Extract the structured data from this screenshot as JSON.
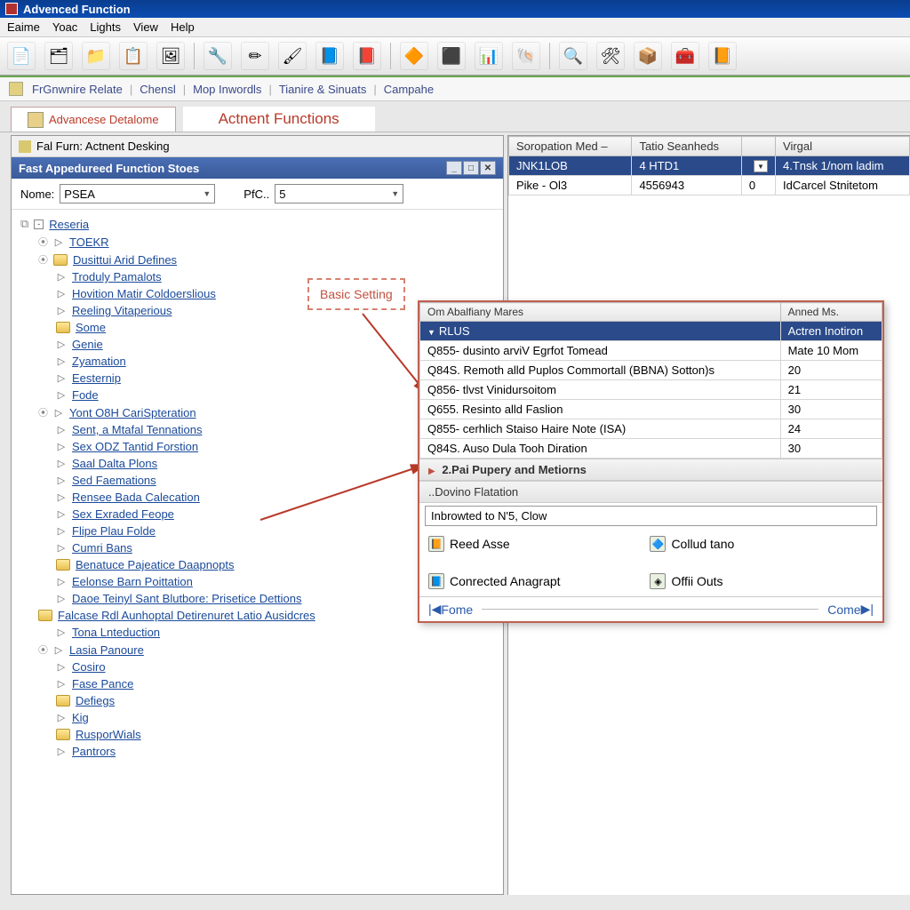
{
  "window": {
    "title": "Advenced Function"
  },
  "menu": [
    "Eaime",
    "Yoac",
    "Lights",
    "View",
    "Help"
  ],
  "toolbar_icons": [
    "📄",
    "🗂",
    "📁",
    "📋",
    "🖼",
    "|",
    "🔧",
    "✏",
    "🖌",
    "📘",
    "📕",
    "|",
    "🔶",
    "⬛",
    "📊",
    "🐚",
    "|",
    "🔍",
    "🛠",
    "📦",
    "🧰",
    "📙"
  ],
  "linkbar": [
    "FrGnwnire Relate",
    "Chensl",
    "Mop Inwordls",
    "Tianire & Sinuats",
    "Campahe"
  ],
  "tabs": {
    "active": "Advancese Detalome",
    "secondary": "Actnent Functions"
  },
  "pane_title": "Fal Furn: Actnent Desking",
  "dialog_title": "Fast Appedureed Function Stoes",
  "filter": {
    "name_label": "Nome:",
    "name_value": "PSEA",
    "pfc_label": "PfC..",
    "pfc_value": "5"
  },
  "tree": [
    {
      "ind": 0,
      "exp": "-",
      "fold": false,
      "arrow": false,
      "text": "Reseria",
      "link": true,
      "pre": "doc"
    },
    {
      "ind": 20,
      "exp": "o",
      "fold": false,
      "arrow": true,
      "text": "TOEKR",
      "link": true
    },
    {
      "ind": 20,
      "exp": "o",
      "fold": true,
      "arrow": false,
      "text": "Dusittui Arid Defines",
      "link": true
    },
    {
      "ind": 40,
      "exp": "",
      "fold": false,
      "arrow": true,
      "text": "Troduly Pamalots",
      "link": true
    },
    {
      "ind": 40,
      "exp": "",
      "fold": false,
      "arrow": true,
      "text": "Hovition Matir Coldoerslious",
      "link": true
    },
    {
      "ind": 40,
      "exp": "",
      "fold": false,
      "arrow": true,
      "text": "Reeling Vitaperious",
      "link": true
    },
    {
      "ind": 40,
      "exp": "",
      "fold": true,
      "arrow": false,
      "text": "Some",
      "link": true
    },
    {
      "ind": 40,
      "exp": "",
      "fold": false,
      "arrow": true,
      "text": "Genie",
      "link": true
    },
    {
      "ind": 40,
      "exp": "",
      "fold": false,
      "arrow": true,
      "text": "Zyamation",
      "link": true
    },
    {
      "ind": 40,
      "exp": "",
      "fold": false,
      "arrow": true,
      "text": "Eesternip",
      "link": true
    },
    {
      "ind": 40,
      "exp": "",
      "fold": false,
      "arrow": true,
      "text": "Fode",
      "link": true
    },
    {
      "ind": 20,
      "exp": "o",
      "fold": false,
      "arrow": true,
      "text": "Yont O8H CariSpteration",
      "link": true
    },
    {
      "ind": 40,
      "exp": "",
      "fold": false,
      "arrow": true,
      "text": "Sent, a Mtafal Tennations",
      "link": true
    },
    {
      "ind": 40,
      "exp": "",
      "fold": false,
      "arrow": true,
      "text": "Sex ODZ Tantid Forstion",
      "link": true
    },
    {
      "ind": 40,
      "exp": "",
      "fold": false,
      "arrow": true,
      "text": "Saal Dalta Plons",
      "link": true
    },
    {
      "ind": 40,
      "exp": "",
      "fold": false,
      "arrow": true,
      "text": "Sed Faemations",
      "link": true
    },
    {
      "ind": 40,
      "exp": "",
      "fold": false,
      "arrow": true,
      "text": "Rensee Bada Calecation",
      "link": true
    },
    {
      "ind": 40,
      "exp": "",
      "fold": false,
      "arrow": true,
      "text": "Sex Exraded Feope",
      "link": true
    },
    {
      "ind": 40,
      "exp": "",
      "fold": false,
      "arrow": true,
      "text": "Flipe Plau Folde",
      "link": true
    },
    {
      "ind": 40,
      "exp": "",
      "fold": false,
      "arrow": true,
      "text": "Cumri Bans",
      "link": true
    },
    {
      "ind": 40,
      "exp": "",
      "fold": true,
      "arrow": false,
      "text": "Benatuce Pajeatice Daapnopts",
      "link": true
    },
    {
      "ind": 40,
      "exp": "",
      "fold": false,
      "arrow": true,
      "text": "Eelonse Barn Poittation",
      "link": true
    },
    {
      "ind": 40,
      "exp": "",
      "fold": false,
      "arrow": true,
      "text": "Daoe Teinyl Sant Blutbore: Prisetice Dettions",
      "link": true
    },
    {
      "ind": 20,
      "exp": "",
      "fold": true,
      "arrow": false,
      "text": "Falcase Rdl Aunhoptal Detirenuret Latio Ausidcres",
      "link": true,
      "pre": "fold2"
    },
    {
      "ind": 40,
      "exp": "",
      "fold": false,
      "arrow": true,
      "text": "Tona Lnteduction",
      "link": true
    },
    {
      "ind": 20,
      "exp": "o",
      "fold": false,
      "arrow": true,
      "text": "Lasia Panoure",
      "link": true
    },
    {
      "ind": 40,
      "exp": "",
      "fold": false,
      "arrow": true,
      "text": "Cosiro",
      "link": true
    },
    {
      "ind": 40,
      "exp": "",
      "fold": false,
      "arrow": true,
      "text": "Fase Pance",
      "link": true
    },
    {
      "ind": 40,
      "exp": "",
      "fold": true,
      "arrow": false,
      "text": "Defiegs",
      "link": true
    },
    {
      "ind": 40,
      "exp": "",
      "fold": false,
      "arrow": true,
      "text": "Kig",
      "link": true
    },
    {
      "ind": 40,
      "exp": "",
      "fold": true,
      "arrow": false,
      "text": "RusporWials",
      "link": true
    },
    {
      "ind": 40,
      "exp": "",
      "fold": false,
      "arrow": true,
      "text": "Pantrors",
      "link": true
    }
  ],
  "right_table": {
    "headers": [
      "Soropation Med –",
      "Tatio Seanheds",
      "",
      "Virgal"
    ],
    "rows": [
      {
        "sel": true,
        "c": [
          "JNK1LOB",
          "4 HTD1",
          "▾",
          "4.Tnsk 1/nom ladim"
        ]
      },
      {
        "sel": false,
        "c": [
          "Pike - Ol3",
          "4556943",
          "0",
          "IdCarcel Stnitetom"
        ]
      }
    ]
  },
  "callout": "Basic Setting",
  "popup": {
    "headers": [
      "Om Abalfiany Mares",
      "Anned Ms."
    ],
    "rows": [
      {
        "sel": true,
        "c": [
          "RLUS",
          "Actren Inotiron"
        ]
      },
      {
        "sel": false,
        "c": [
          "Q855- dusinto arviV Egrfot Tomead",
          "Mate 10 Mom"
        ]
      },
      {
        "sel": false,
        "c": [
          "Q84S. Remoth alld Puplos Commortall (BBNA) Sotton)s",
          "20"
        ]
      },
      {
        "sel": false,
        "c": [
          "Q856- tlvst Vinidursoitom",
          "21"
        ]
      },
      {
        "sel": false,
        "c": [
          "Q655. Resinto alld Faslion",
          "30"
        ]
      },
      {
        "sel": false,
        "c": [
          "Q855- cerhlich Staiso Haire Note (ISA)",
          "24"
        ]
      },
      {
        "sel": false,
        "c": [
          "Q84S. Auso Dula Tooh Diration",
          "30"
        ]
      }
    ],
    "sub1": "2.Pai Pupery and Metiorns",
    "sub2": "..Dovino Flatation",
    "input": "Inbrowted to N'5, Clow",
    "actions": [
      {
        "icon": "📙",
        "label": "Reed Asse"
      },
      {
        "icon": "🔷",
        "label": "Collud tano"
      },
      {
        "icon": "📘",
        "label": "Conrected Anagrapt"
      },
      {
        "icon": "◈",
        "label": "Offii Outs"
      }
    ],
    "nav": {
      "first": "|◀",
      "prev": "Fome",
      "next": "Come",
      "last": "▶|"
    }
  },
  "colors": {
    "title_bg": "#0b4db3",
    "accent_red": "#c05040",
    "link_blue": "#1a4a9a",
    "sel_row": "#2a4a8a"
  }
}
